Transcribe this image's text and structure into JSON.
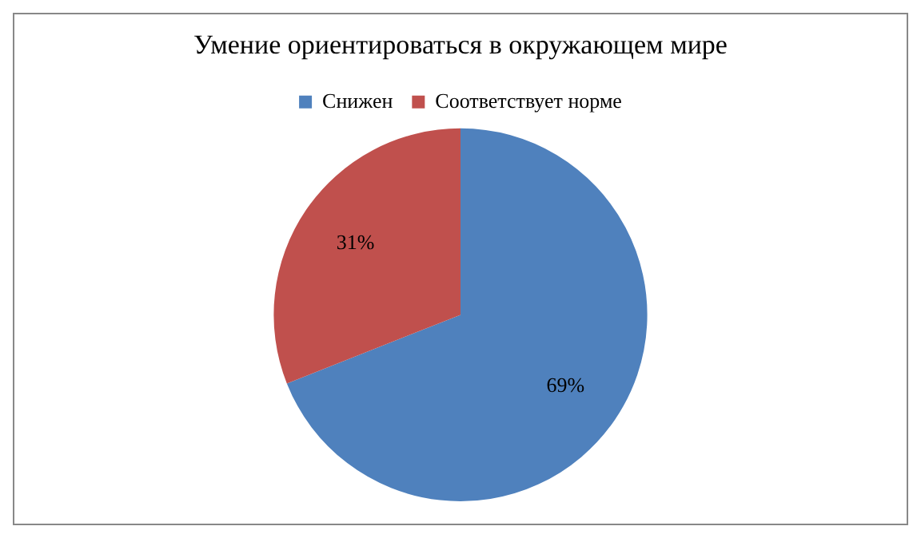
{
  "chart_data": {
    "type": "pie",
    "title": "Умение ориентироваться в окружающем мире",
    "categories": [
      "Снижен",
      "Соответствует норме"
    ],
    "values": [
      69,
      31
    ],
    "colors": [
      "#4f81bd",
      "#c0504d"
    ],
    "value_labels": [
      "69%",
      "31%"
    ],
    "legend": "top"
  }
}
